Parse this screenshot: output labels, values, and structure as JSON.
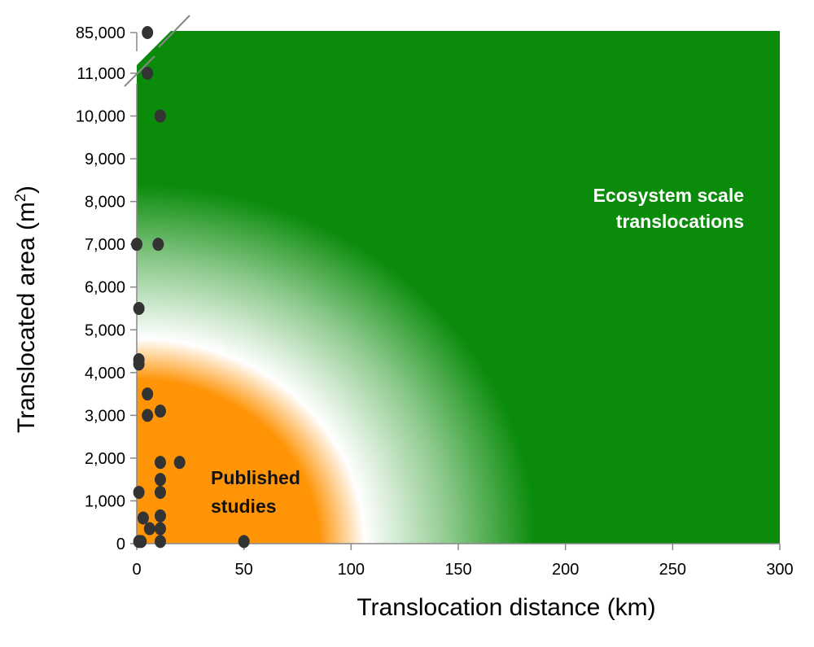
{
  "chart_data": {
    "type": "scatter",
    "title": "",
    "xlabel": "Translocation distance (km)",
    "ylabel_main": "Translocated area (m",
    "ylabel_sup": "2",
    "ylabel_end": ")",
    "xlim": [
      0,
      300
    ],
    "ylim": [
      0,
      12000
    ],
    "x_ticks": [
      0,
      50,
      100,
      150,
      200,
      250,
      300
    ],
    "x_tick_labels": [
      "0",
      "50",
      "100",
      "150",
      "200",
      "250",
      "300"
    ],
    "y_ticks": [
      0,
      1000,
      2000,
      3000,
      4000,
      5000,
      6000,
      7000,
      8000,
      9000,
      10000,
      11000
    ],
    "y_tick_labels": [
      "0",
      "1,000",
      "2,000",
      "3,000",
      "4,000",
      "5,000",
      "6,000",
      "7,000",
      "8,000",
      "9,000",
      "10,000",
      "11,000"
    ],
    "y_break": {
      "from": 11000,
      "label": "85,000",
      "value": 85000
    },
    "grid": false,
    "colors": {
      "published_region": "#ff9407",
      "transition": "#ffffff",
      "ecosystem_region": "#0a8b0a",
      "points": "#333333"
    },
    "annotations": [
      {
        "lines": [
          "Ecosystem scale",
          "translocations"
        ],
        "color": "#ffffff",
        "align": "right"
      },
      {
        "lines": [
          "Published",
          "studies"
        ],
        "color": "#111111",
        "align": "left"
      }
    ],
    "series": [
      {
        "points": [
          [
            5,
            85000
          ],
          [
            5,
            11000
          ],
          [
            11,
            10000
          ],
          [
            0,
            7000
          ],
          [
            10,
            7000
          ],
          [
            1,
            5500
          ],
          [
            1,
            4300
          ],
          [
            1,
            4200
          ],
          [
            5,
            3500
          ],
          [
            5,
            3000
          ],
          [
            11,
            3100
          ],
          [
            11,
            1900
          ],
          [
            20,
            1900
          ],
          [
            11,
            1500
          ],
          [
            11,
            1200
          ],
          [
            1,
            1200
          ],
          [
            11,
            650
          ],
          [
            3,
            600
          ],
          [
            6,
            350
          ],
          [
            11,
            350
          ],
          [
            1,
            50
          ],
          [
            2,
            50
          ],
          [
            11,
            50
          ],
          [
            50,
            50
          ]
        ]
      }
    ]
  }
}
